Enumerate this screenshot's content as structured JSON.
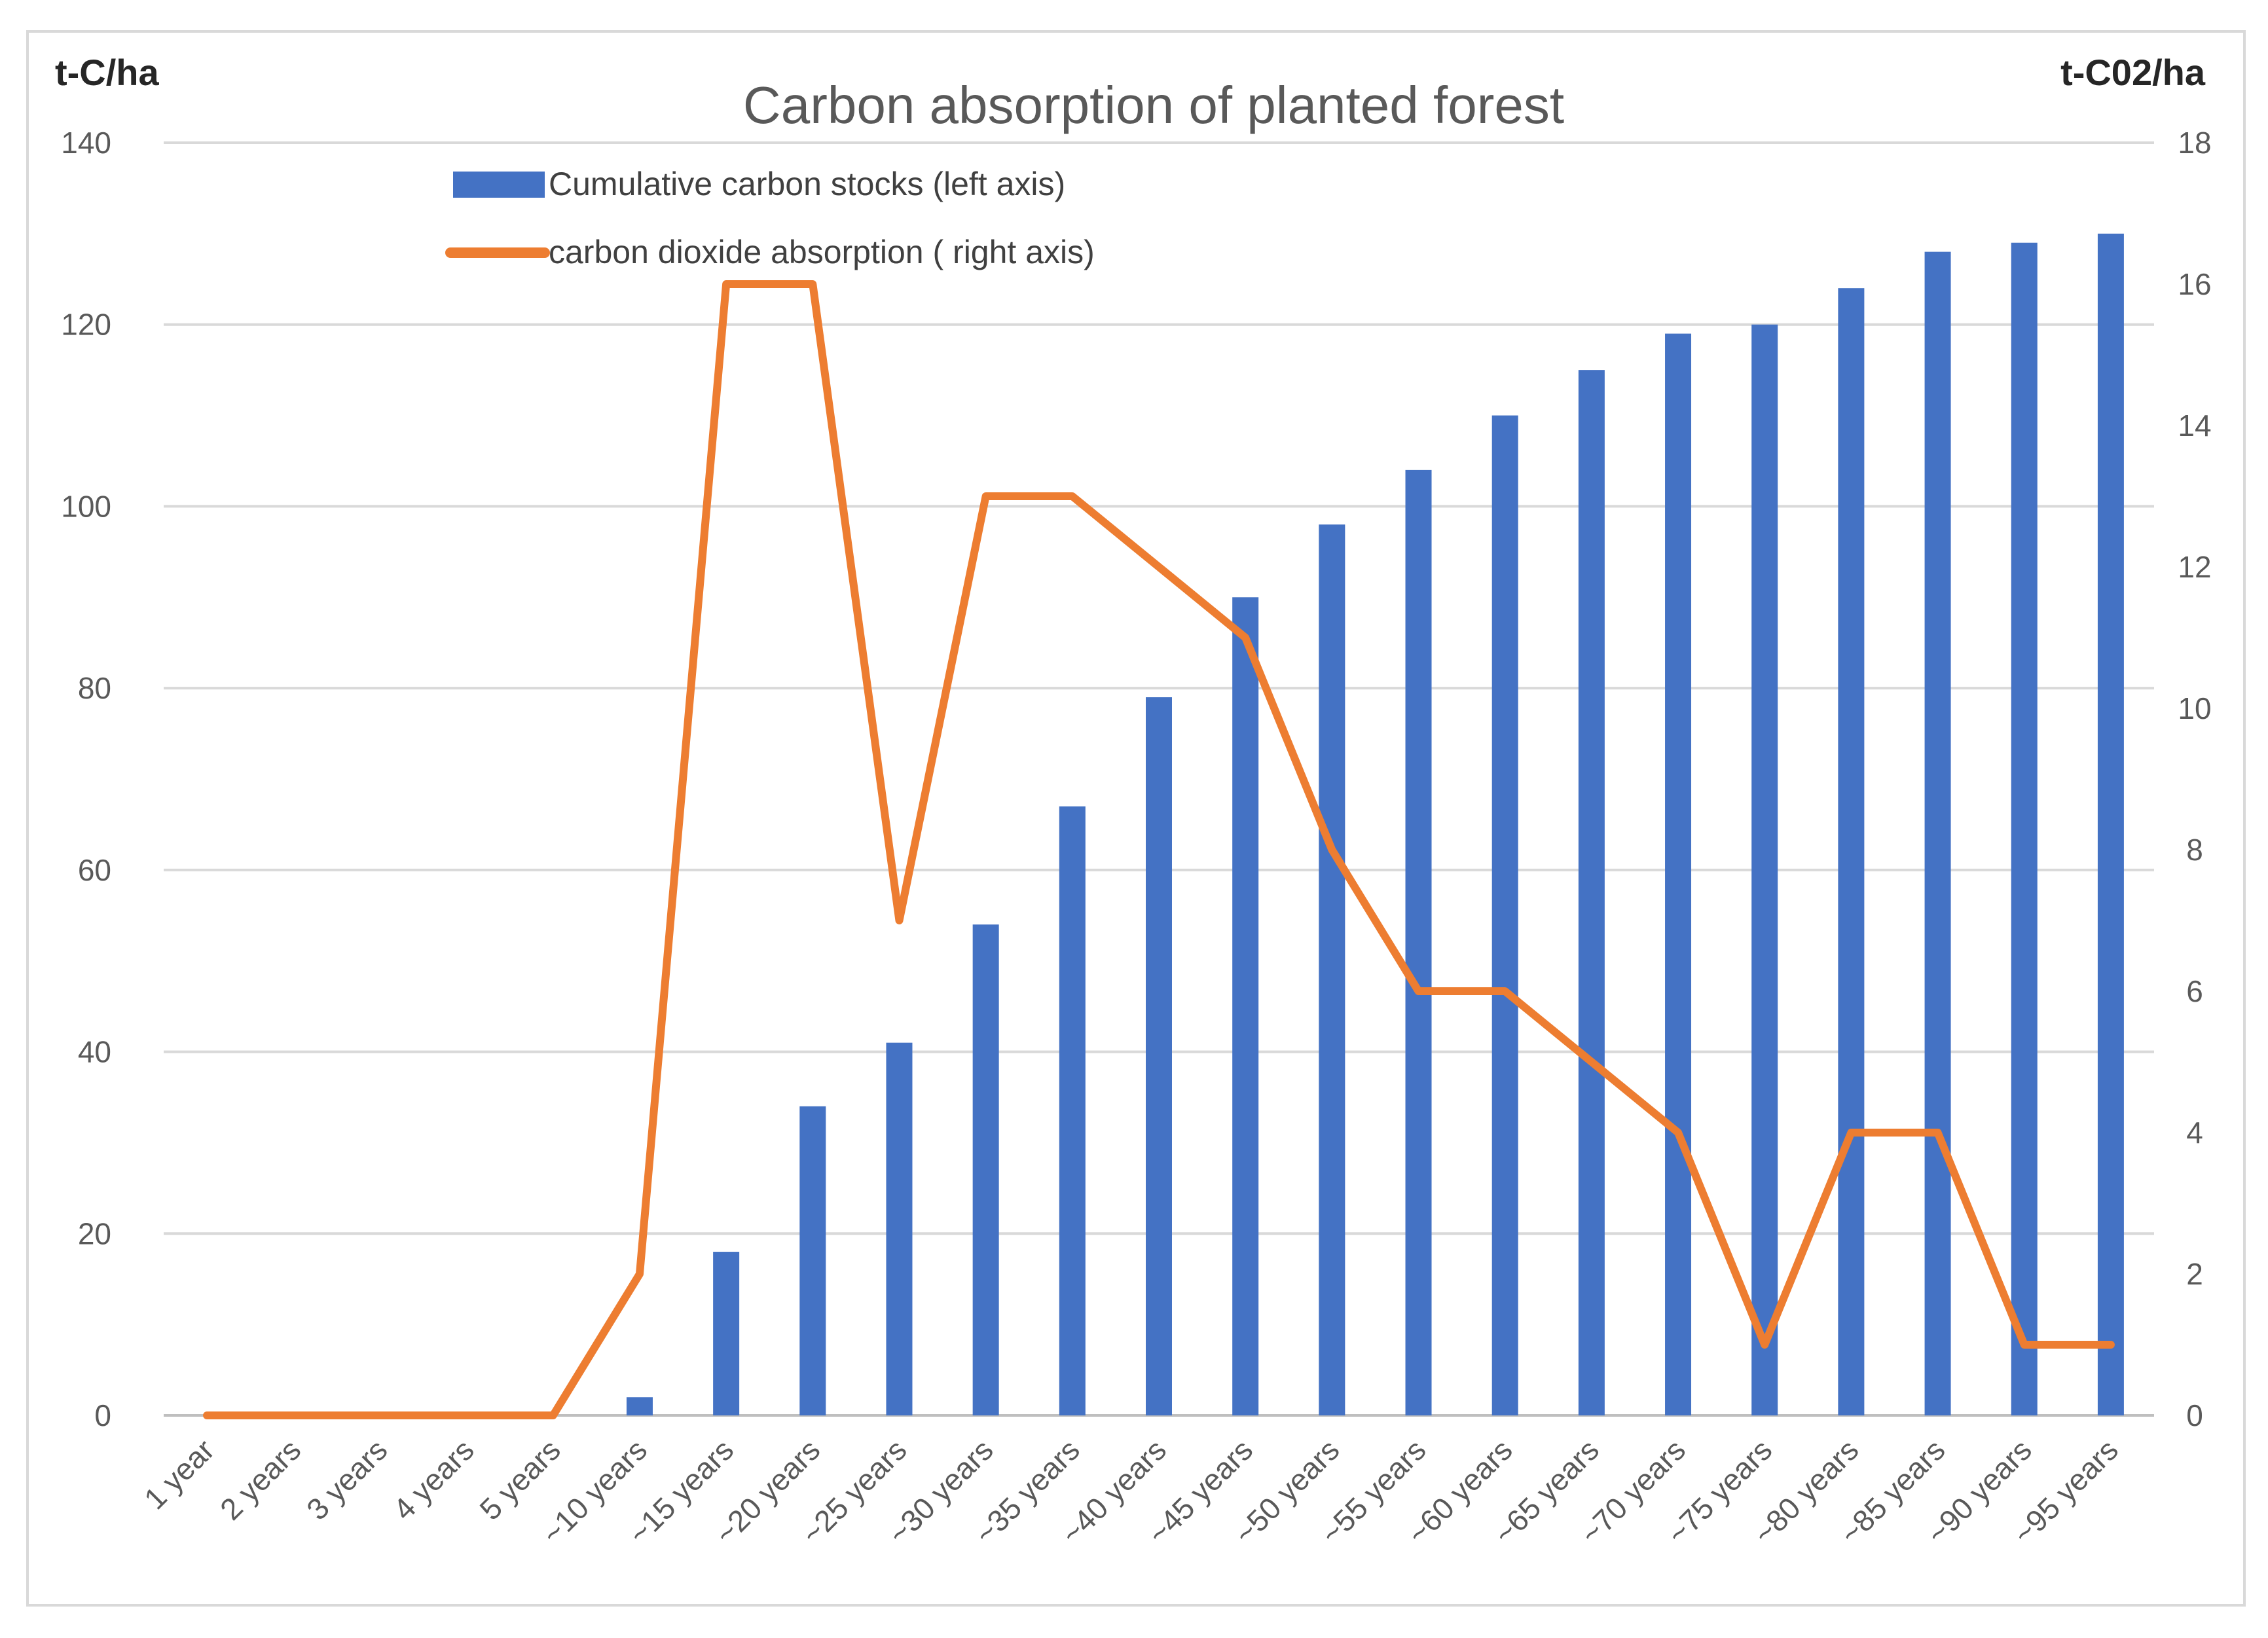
{
  "chart_data": {
    "type": "bar+line",
    "title": "Carbon  absorption of planted forest",
    "left_axis_label": "t-C/ha",
    "right_axis_label": "t-C02/ha",
    "categories": [
      "1 year",
      "2 years",
      "3 years",
      "4 years",
      "5 years",
      "~10 years",
      "~15 years",
      "~20 years",
      "~25 years",
      "~30 years",
      "~35 years",
      "~40 years",
      "~45 years",
      "~50 years",
      "~55 years",
      "~60 years",
      "~65 years",
      "~70 years",
      "~75 years",
      "~80 years",
      "~85 years",
      "~90 years",
      "~95 years"
    ],
    "series": [
      {
        "name": "Cumulative carbon stocks (left axis)",
        "type": "bar",
        "axis": "left",
        "color": "#4472c4",
        "values": [
          0,
          0,
          0,
          0,
          0,
          2,
          18,
          34,
          41,
          54,
          67,
          79,
          90,
          98,
          104,
          110,
          115,
          119,
          120,
          124,
          128,
          129,
          130
        ]
      },
      {
        "name": "carbon dioxide absorption ( right axis)",
        "type": "line",
        "axis": "right",
        "color": "#ed7d31",
        "values": [
          0,
          0,
          0,
          0,
          0,
          2,
          16,
          16,
          7,
          13,
          13,
          12,
          11,
          8,
          6,
          6,
          5,
          4,
          1,
          4,
          4,
          1,
          1
        ]
      }
    ],
    "left_ylim": [
      0,
      140
    ],
    "left_ticks": [
      0,
      20,
      40,
      60,
      80,
      100,
      120,
      140
    ],
    "right_ylim": [
      0,
      18
    ],
    "right_ticks": [
      0,
      2,
      4,
      6,
      8,
      10,
      12,
      14,
      16,
      18
    ],
    "grid": true,
    "legend_position": "top-left"
  }
}
